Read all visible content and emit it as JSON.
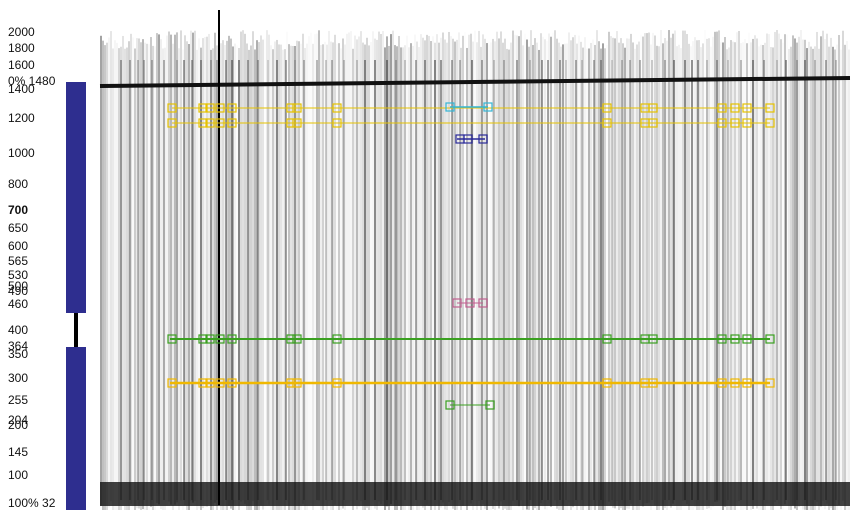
{
  "ladder": {
    "labels": [
      "2000",
      "1800",
      "1600",
      "0% 1480",
      "1400",
      "1200",
      "1000",
      "800",
      "700",
      "650",
      "600",
      "565",
      "530",
      "500",
      "490",
      "460",
      "400",
      "364",
      "350",
      "300",
      "255",
      "204",
      "200",
      "145",
      "100",
      "100% 32"
    ]
  }
}
